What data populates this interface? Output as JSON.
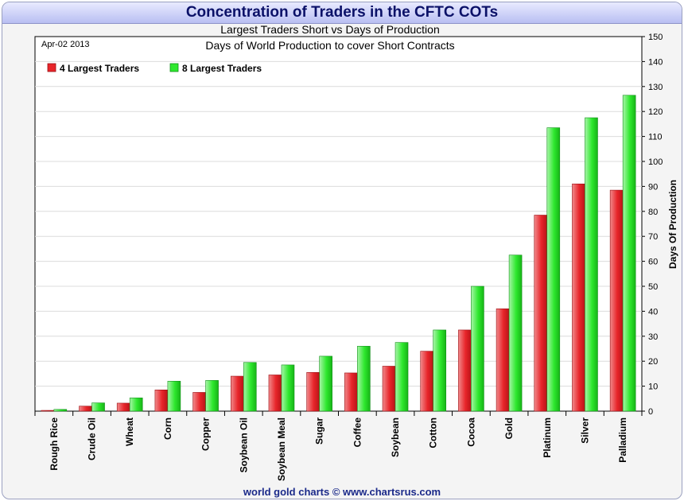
{
  "header": {
    "title": "Concentration of Traders in the CFTC COTs"
  },
  "footer": {
    "credit": "world gold charts © www.chartsrus.com"
  },
  "chart_data": {
    "type": "bar",
    "title": "Largest Traders Short vs Days of Production",
    "subtitle": "Days of World Production to cover Short Contracts",
    "date": "Apr-02 2013",
    "ylabel": "Days Of Production",
    "xlabel": "",
    "ylim": [
      0,
      150
    ],
    "yticks": [
      0,
      10,
      20,
      30,
      40,
      50,
      60,
      70,
      80,
      90,
      100,
      110,
      120,
      130,
      140,
      150
    ],
    "y_axis_side": "right",
    "grid": true,
    "legend_position": "top-left",
    "categories": [
      "Rough Rice",
      "Crude Oil",
      "Wheat",
      "Corn",
      "Copper",
      "Soybean Oil",
      "Soybean Meal",
      "Sugar",
      "Coffee",
      "Soybean",
      "Cotton",
      "Cocoa",
      "Gold",
      "Platinum",
      "Silver",
      "Palladium"
    ],
    "series": [
      {
        "name": "4 Largest Traders",
        "color": "#e8252a",
        "values": [
          0.3,
          2,
          3.2,
          8.5,
          7.5,
          14,
          14.5,
          15.5,
          15.3,
          18,
          24,
          32.5,
          41,
          78.5,
          91,
          88.5
        ]
      },
      {
        "name": "8 Largest Traders",
        "color": "#2ee82e",
        "values": [
          0.7,
          3.3,
          5.3,
          12,
          12.3,
          19.5,
          18.5,
          22,
          26,
          27.5,
          32.5,
          50,
          62.5,
          113.5,
          117.5,
          126.5
        ]
      }
    ]
  }
}
